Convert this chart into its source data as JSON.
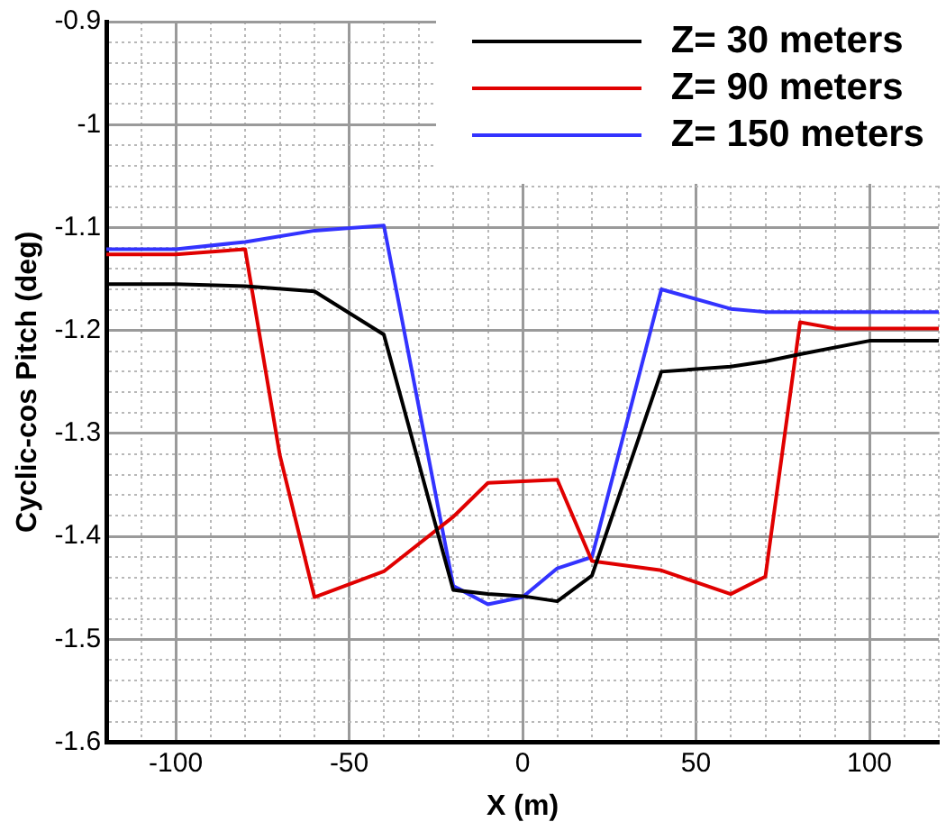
{
  "chart_data": {
    "type": "line",
    "xlabel": "X (m)",
    "ylabel": "Cyclic-cos Pitch (deg)",
    "xlim": [
      -120,
      120
    ],
    "ylim": [
      -1.6,
      -0.9
    ],
    "xticks": [
      {
        "value": -120,
        "label": null
      },
      {
        "value": -110,
        "label": null
      },
      -100,
      {
        "value": -90,
        "label": null
      },
      {
        "value": -80,
        "label": null
      },
      {
        "value": -70,
        "label": null
      },
      {
        "value": -60,
        "label": null
      },
      -50,
      {
        "value": -40,
        "label": null
      },
      {
        "value": -30,
        "label": null
      },
      {
        "value": -20,
        "label": null
      },
      {
        "value": -10,
        "label": null
      },
      0,
      {
        "value": 10,
        "label": null
      },
      {
        "value": 20,
        "label": null
      },
      {
        "value": 30,
        "label": null
      },
      {
        "value": 40,
        "label": null
      },
      50,
      {
        "value": 60,
        "label": null
      },
      {
        "value": 70,
        "label": null
      },
      {
        "value": 80,
        "label": null
      },
      {
        "value": 90,
        "label": null
      },
      100,
      {
        "value": 110,
        "label": null
      },
      {
        "value": 120,
        "label": null
      }
    ],
    "yticks": [
      -1.6,
      {
        "value": -1.58,
        "label": null
      },
      {
        "value": -1.56,
        "label": null
      },
      {
        "value": -1.54,
        "label": null
      },
      {
        "value": -1.52,
        "label": null
      },
      -1.5,
      {
        "value": -1.48,
        "label": null
      },
      {
        "value": -1.46,
        "label": null
      },
      {
        "value": -1.44,
        "label": null
      },
      {
        "value": -1.42,
        "label": null
      },
      -1.4,
      {
        "value": -1.38,
        "label": null
      },
      {
        "value": -1.36,
        "label": null
      },
      {
        "value": -1.34,
        "label": null
      },
      {
        "value": -1.32,
        "label": null
      },
      -1.3,
      {
        "value": -1.28,
        "label": null
      },
      {
        "value": -1.26,
        "label": null
      },
      {
        "value": -1.24,
        "label": null
      },
      {
        "value": -1.22,
        "label": null
      },
      -1.2,
      {
        "value": -1.18,
        "label": null
      },
      {
        "value": -1.16,
        "label": null
      },
      {
        "value": -1.14,
        "label": null
      },
      {
        "value": -1.12,
        "label": null
      },
      -1.1,
      {
        "value": -1.08,
        "label": null
      },
      {
        "value": -1.06,
        "label": null
      },
      {
        "value": -1.04,
        "label": null
      },
      {
        "value": -1.02,
        "label": null
      },
      -1,
      {
        "value": -0.98,
        "label": null
      },
      {
        "value": -0.96,
        "label": null
      },
      {
        "value": -0.94,
        "label": null
      },
      {
        "value": -0.92,
        "label": null
      },
      -0.9
    ],
    "grid": true,
    "legend": "top right",
    "marker": "none",
    "line_style": "solid",
    "series": [
      {
        "name": "Z= 30 meters",
        "color": "#000000",
        "x": [
          -120,
          -100,
          -80,
          -60,
          -40,
          -20,
          -10,
          0,
          10,
          20,
          40,
          60,
          70,
          80,
          100,
          120
        ],
        "values": [
          -1.155,
          -1.155,
          -1.157,
          -1.162,
          -1.204,
          -1.452,
          -1.456,
          -1.458,
          -1.463,
          -1.438,
          -1.24,
          -1.235,
          -1.23,
          -1.223,
          -1.21,
          -1.21
        ]
      },
      {
        "name": "Z= 90 meters",
        "color": "#e00000",
        "x": [
          -120,
          -100,
          -80,
          -70,
          -60,
          -40,
          -20,
          -10,
          10,
          20,
          40,
          60,
          70,
          80,
          90,
          120
        ],
        "values": [
          -1.126,
          -1.126,
          -1.121,
          -1.321,
          -1.459,
          -1.434,
          -1.381,
          -1.348,
          -1.345,
          -1.424,
          -1.433,
          -1.456,
          -1.439,
          -1.192,
          -1.198,
          -1.198
        ]
      },
      {
        "name": "Z= 150 meters",
        "color": "#3333ff",
        "x": [
          -120,
          -100,
          -80,
          -60,
          -40,
          -20,
          -10,
          0,
          10,
          20,
          40,
          60,
          70,
          80,
          120
        ],
        "values": [
          -1.121,
          -1.121,
          -1.114,
          -1.103,
          -1.098,
          -1.448,
          -1.466,
          -1.459,
          -1.431,
          -1.42,
          -1.16,
          -1.179,
          -1.182,
          -1.182,
          -1.182
        ]
      }
    ]
  }
}
